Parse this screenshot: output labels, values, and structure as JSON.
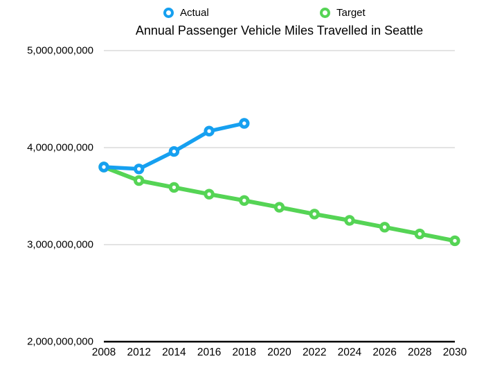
{
  "title": "Annual Passenger Vehicle Miles Travelled in Seattle",
  "colors": {
    "actual": "#16A0F0",
    "target": "#55D455",
    "grid": "#C7C7C7",
    "axis": "#000000",
    "text": "#000000",
    "background": "#FFFFFF"
  },
  "chart_data": {
    "type": "line",
    "title": "Annual Passenger Vehicle Miles Travelled in Seattle",
    "categories": [
      "2008",
      "2012",
      "2014",
      "2016",
      "2018",
      "2020",
      "2022",
      "2024",
      "2026",
      "2028",
      "2030"
    ],
    "series": [
      {
        "name": "Actual",
        "color": "#16A0F0",
        "values": [
          3800000000,
          3780000000,
          3960000000,
          4170000000,
          4250000000,
          null,
          null,
          null,
          null,
          null,
          null
        ]
      },
      {
        "name": "Target",
        "color": "#55D455",
        "values": [
          3800000000,
          3660000000,
          3590000000,
          3520000000,
          3455000000,
          3385000000,
          3315000000,
          3250000000,
          3180000000,
          3110000000,
          3040000000
        ]
      }
    ],
    "xlabel": "",
    "ylabel": "",
    "ylim": [
      2000000000,
      5000000000
    ],
    "y_ticks": [
      5000000000,
      4000000000,
      3000000000,
      2000000000
    ],
    "y_tick_labels": [
      "5,000,000,000",
      "4,000,000,000",
      "3,000,000,000",
      "2,000,000,000"
    ],
    "grid": "horizontal-gridlines-on",
    "legend_position": "top"
  }
}
